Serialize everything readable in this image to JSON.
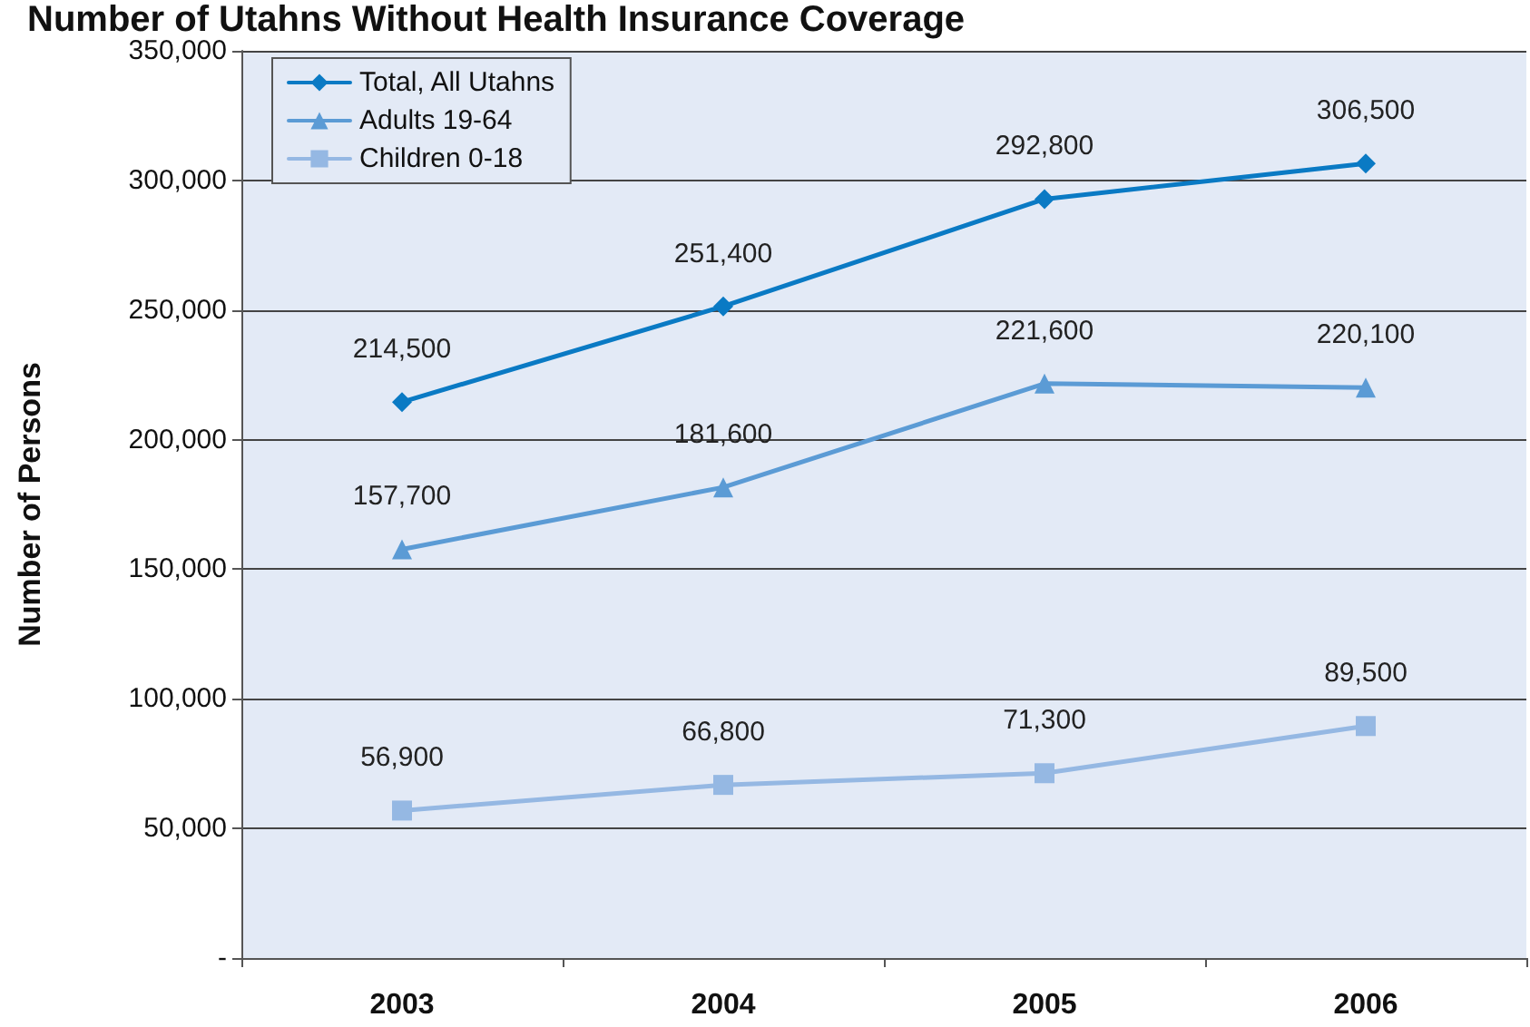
{
  "chart_data": {
    "type": "line",
    "title": "Number of Utahns Without Health Insurance Coverage",
    "ylabel": "Number of Persons",
    "categories": [
      "2003",
      "2004",
      "2005",
      "2006"
    ],
    "series": [
      {
        "name": "Total, All Utahns",
        "color": "#0a7ac4",
        "marker": "diamond",
        "values": [
          214500,
          251400,
          292800,
          306500
        ],
        "value_labels": [
          "214,500",
          "251,400",
          "292,800",
          "306,500"
        ]
      },
      {
        "name": "Adults 19-64",
        "color": "#5b9bd5",
        "marker": "triangle",
        "values": [
          157700,
          181600,
          221600,
          220100
        ],
        "value_labels": [
          "157,700",
          "181,600",
          "221,600",
          "220,100"
        ]
      },
      {
        "name": "Children 0-18",
        "color": "#95b8e3",
        "marker": "square",
        "values": [
          56900,
          66800,
          71300,
          89500
        ],
        "value_labels": [
          "56,900",
          "66,800",
          "71,300",
          "89,500"
        ]
      }
    ],
    "ylim": [
      0,
      350000
    ],
    "yticks": [
      {
        "value": 0,
        "label": "-"
      },
      {
        "value": 50000,
        "label": "50,000"
      },
      {
        "value": 100000,
        "label": "100,000"
      },
      {
        "value": 150000,
        "label": "150,000"
      },
      {
        "value": 200000,
        "label": "200,000"
      },
      {
        "value": 250000,
        "label": "250,000"
      },
      {
        "value": 300000,
        "label": "300,000"
      },
      {
        "value": 350000,
        "label": "350,000"
      }
    ],
    "grid": "y",
    "legend": "top left",
    "line_style": "solid"
  }
}
